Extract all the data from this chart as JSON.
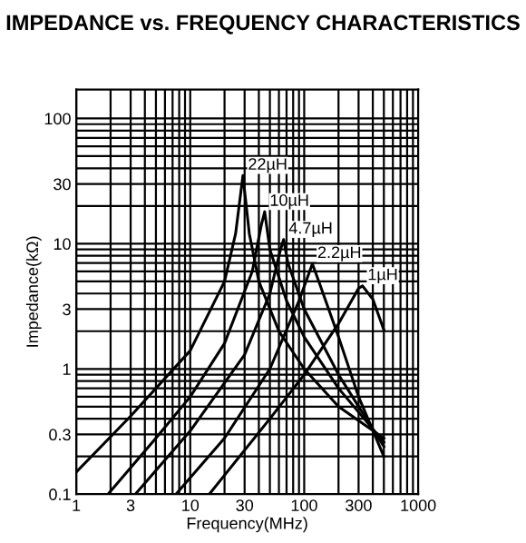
{
  "chart_data": {
    "type": "line",
    "title": "IMPEDANCE vs. FREQUENCY CHARACTERISTICS",
    "xlabel": "Frequency(MHz)",
    "ylabel": "Impedance(kΩ)",
    "log": "xy",
    "grid": true,
    "legend": false,
    "marker": "none",
    "line_style": "solid",
    "xlim": [
      1,
      1000
    ],
    "ylim": [
      0.1,
      170
    ],
    "xticks": [
      1,
      {
        "value": 2,
        "label": null
      },
      3,
      {
        "value": 4,
        "label": null
      },
      {
        "value": 5,
        "label": null
      },
      {
        "value": 6,
        "label": null
      },
      {
        "value": 7,
        "label": null
      },
      {
        "value": 8,
        "label": null
      },
      {
        "value": 9,
        "label": null
      },
      10,
      {
        "value": 20,
        "label": null
      },
      30,
      {
        "value": 40,
        "label": null
      },
      {
        "value": 50,
        "label": null
      },
      {
        "value": 60,
        "label": null
      },
      {
        "value": 70,
        "label": null
      },
      {
        "value": 80,
        "label": null
      },
      {
        "value": 90,
        "label": null
      },
      100,
      {
        "value": 200,
        "label": null
      },
      300,
      {
        "value": 400,
        "label": null
      },
      {
        "value": 500,
        "label": null
      },
      {
        "value": 600,
        "label": null
      },
      {
        "value": 700,
        "label": null
      },
      {
        "value": 800,
        "label": null
      },
      {
        "value": 900,
        "label": null
      },
      1000
    ],
    "yticks": [
      0.1,
      {
        "value": 0.2,
        "label": null
      },
      0.3,
      {
        "value": 0.4,
        "label": null
      },
      {
        "value": 0.5,
        "label": null
      },
      {
        "value": 0.6,
        "label": null
      },
      {
        "value": 0.7,
        "label": null
      },
      {
        "value": 0.8,
        "label": null
      },
      {
        "value": 0.9,
        "label": null
      },
      1,
      {
        "value": 2,
        "label": null
      },
      3,
      {
        "value": 4,
        "label": null
      },
      {
        "value": 5,
        "label": null
      },
      {
        "value": 6,
        "label": null
      },
      {
        "value": 7,
        "label": null
      },
      {
        "value": 8,
        "label": null
      },
      {
        "value": 9,
        "label": null
      },
      10,
      {
        "value": 20,
        "label": null
      },
      30,
      {
        "value": 40,
        "label": null
      },
      {
        "value": 50,
        "label": null
      },
      {
        "value": 60,
        "label": null
      },
      {
        "value": 70,
        "label": null
      },
      {
        "value": 80,
        "label": null
      },
      {
        "value": 90,
        "label": null
      },
      100
    ],
    "series": [
      {
        "name": "22µH",
        "color": "#000000",
        "x": [
          1,
          3,
          10,
          20,
          25,
          29,
          33,
          40,
          60,
          100,
          200,
          500
        ],
        "values": [
          0.15,
          0.42,
          1.4,
          5,
          12,
          35,
          12,
          5,
          2,
          1,
          0.5,
          0.28
        ]
      },
      {
        "name": "10µH",
        "color": "#000000",
        "x": [
          1.9,
          5,
          10,
          20,
          35,
          42,
          45,
          50,
          70,
          100,
          200,
          500
        ],
        "values": [
          0.1,
          0.28,
          0.6,
          1.6,
          6,
          14,
          18,
          9,
          3.5,
          1.8,
          0.7,
          0.26
        ]
      },
      {
        "name": "4.7µH",
        "color": "#000000",
        "x": [
          3.3,
          10,
          30,
          50,
          62,
          66,
          72,
          100,
          200,
          500
        ],
        "values": [
          0.1,
          0.32,
          1.3,
          4,
          9,
          10.8,
          7,
          3,
          0.9,
          0.24
        ]
      },
      {
        "name": "2.2µH",
        "color": "#000000",
        "x": [
          7.5,
          20,
          50,
          90,
          118,
          140,
          200,
          300,
          500
        ],
        "values": [
          0.1,
          0.28,
          1,
          3.5,
          6.9,
          4.5,
          1.8,
          0.6,
          0.2
        ]
      },
      {
        "name": "1µH",
        "color": "#000000",
        "x": [
          14.7,
          50,
          100,
          200,
          300,
          325,
          400,
          500
        ],
        "values": [
          0.1,
          0.4,
          0.9,
          2.3,
          4.4,
          4.6,
          3.6,
          2.05
        ]
      }
    ]
  }
}
